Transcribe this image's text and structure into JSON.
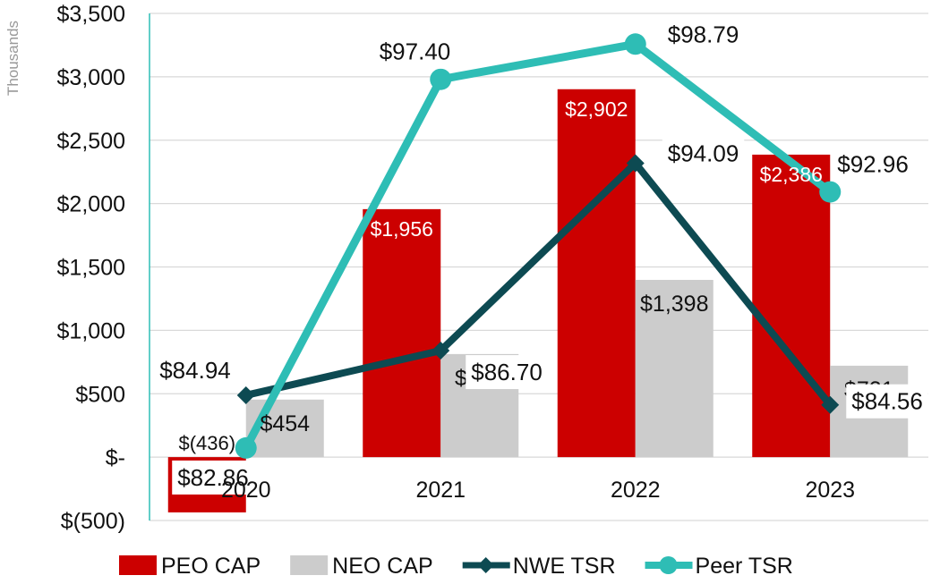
{
  "chart_data": {
    "type": "bar",
    "unit_label": "Thousands",
    "categories": [
      "2020",
      "2021",
      "2022",
      "2023"
    ],
    "ylim": [
      -500,
      3500
    ],
    "y_ticks": [
      {
        "value": 3500,
        "label": "$3,500"
      },
      {
        "value": 3000,
        "label": "$3,000"
      },
      {
        "value": 2500,
        "label": "$2,500"
      },
      {
        "value": 2000,
        "label": "$2,000"
      },
      {
        "value": 1500,
        "label": "$1,500"
      },
      {
        "value": 1000,
        "label": "$1,000"
      },
      {
        "value": 500,
        "label": "$500"
      },
      {
        "value": 0,
        "label": "$-"
      },
      {
        "value": -500,
        "label": "$(500)"
      }
    ],
    "grid": true,
    "legend_position": "bottom",
    "bar_series": [
      {
        "name": "PEO CAP",
        "color": "#cc0000",
        "values": [
          -436,
          1956,
          2902,
          2386
        ],
        "labels": [
          "$(436)",
          "$1,956",
          "$2,902",
          "$2,386"
        ]
      },
      {
        "name": "NEO CAP",
        "color": "#cccccc",
        "values": [
          454,
          813,
          1398,
          721
        ],
        "labels": [
          "$454",
          "$813",
          "$1,398",
          "$721"
        ]
      }
    ],
    "line_series": [
      {
        "name": "NWE TSR",
        "color": "#0d4a52",
        "marker": "diamond",
        "values": [
          84.94,
          86.7,
          94.09,
          84.56
        ],
        "labels": [
          "$84.94",
          "$86.70",
          "$94.09",
          "$84.56"
        ]
      },
      {
        "name": "Peer TSR",
        "color": "#2ebdb5",
        "marker": "circle",
        "values": [
          82.86,
          97.4,
          98.79,
          92.96
        ],
        "labels": [
          "$82.86",
          "$97.40",
          "$98.79",
          "$92.96"
        ]
      }
    ]
  }
}
